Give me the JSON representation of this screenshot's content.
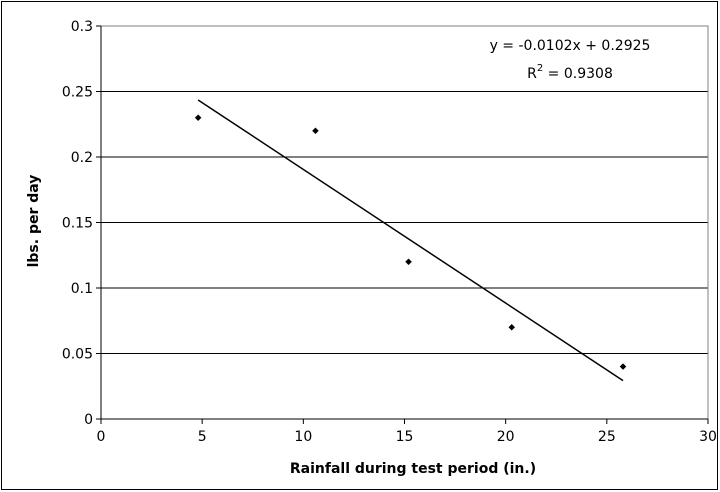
{
  "chart_data": {
    "type": "scatter",
    "title": "",
    "xlabel": "Rainfall during test period (in.)",
    "ylabel": "lbs. per day",
    "xlim": [
      0,
      30
    ],
    "ylim": [
      0,
      0.3
    ],
    "x_ticks": [
      0,
      5,
      10,
      15,
      20,
      25,
      30
    ],
    "x_tick_labels": [
      "0",
      "5",
      "10",
      "15",
      "20",
      "25",
      "30"
    ],
    "y_ticks": [
      0,
      0.05,
      0.1,
      0.15,
      0.2,
      0.25,
      0.3
    ],
    "y_tick_labels": [
      "0",
      "0.05",
      "0.1",
      "0.15",
      "0.2",
      "0.25",
      "0.3"
    ],
    "grid": "horizontal",
    "legend": "none",
    "series": [
      {
        "marker": "diamond",
        "color": "#000000",
        "points": [
          {
            "x": 4.8,
            "y": 0.23
          },
          {
            "x": 10.6,
            "y": 0.22
          },
          {
            "x": 15.2,
            "y": 0.12
          },
          {
            "x": 20.3,
            "y": 0.07
          },
          {
            "x": 25.8,
            "y": 0.04
          }
        ]
      }
    ],
    "trendline": {
      "type": "linear",
      "slope": -0.0102,
      "intercept": 0.2925,
      "x_range": [
        4.8,
        25.8
      ],
      "color": "#000000"
    },
    "annotations": {
      "equation": "y = -0.0102x + 0.2925",
      "r_squared_prefix": "R",
      "r_squared_sup": "2",
      "r_squared_value": " = 0.9308"
    }
  }
}
